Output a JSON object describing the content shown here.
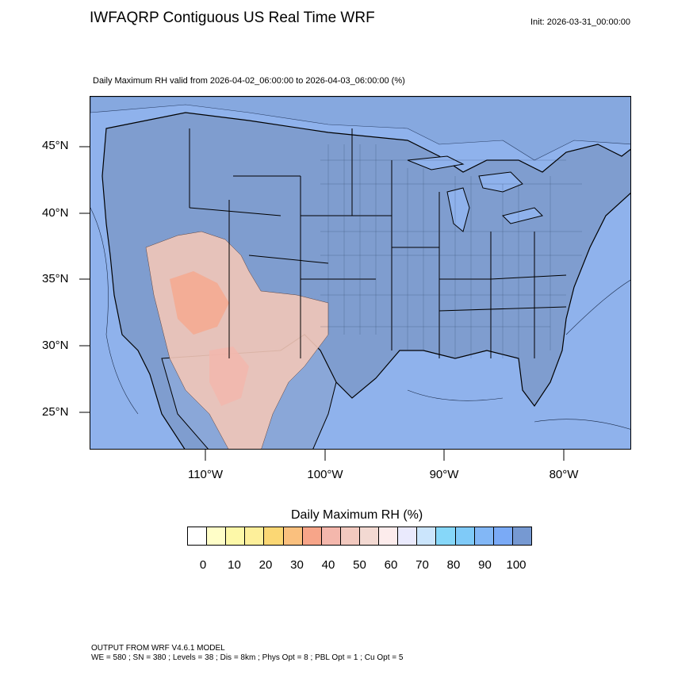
{
  "header": {
    "title": "IWFAQRP Contiguous US Real Time WRF",
    "init": "Init: 2026-03-31_00:00:00",
    "subtitle": "Daily Maximum RH valid from 2026-04-02_06:00:00 to 2026-04-03_06:00:00   (%)"
  },
  "map": {
    "lat_labels": [
      "45°N",
      "40°N",
      "35°N",
      "30°N",
      "25°N"
    ],
    "lon_labels": [
      "110°W",
      "100°W",
      "90°W",
      "80°W"
    ],
    "ocean_color": "#8fb2ec",
    "land_color": "#7f9dcf",
    "dry_color": "#f2c7b8"
  },
  "colorbar": {
    "title": "Daily Maximum RH  (%)",
    "colors": [
      "#ffffff",
      "#fffec8",
      "#fdf8a8",
      "#fdef9a",
      "#fbd774",
      "#fac07e",
      "#f7a589",
      "#f4b7ac",
      "#f2c9bf",
      "#f3d9d2",
      "#fdecec",
      "#eaeafd",
      "#cbe5fc",
      "#86d7f9",
      "#7fcaf8",
      "#82b7f6",
      "#7aaaf6",
      "#7699d2"
    ],
    "tick_labels": [
      "0",
      "10",
      "20",
      "30",
      "40",
      "50",
      "60",
      "70",
      "80",
      "90",
      "100"
    ]
  },
  "footer": {
    "line1": "OUTPUT FROM WRF V4.6.1 MODEL",
    "line2": "WE = 580 ; SN = 380 ; Levels = 38 ; Dis = 8km ; Phys Opt = 8 ; PBL Opt = 1 ; Cu Opt = 5"
  }
}
